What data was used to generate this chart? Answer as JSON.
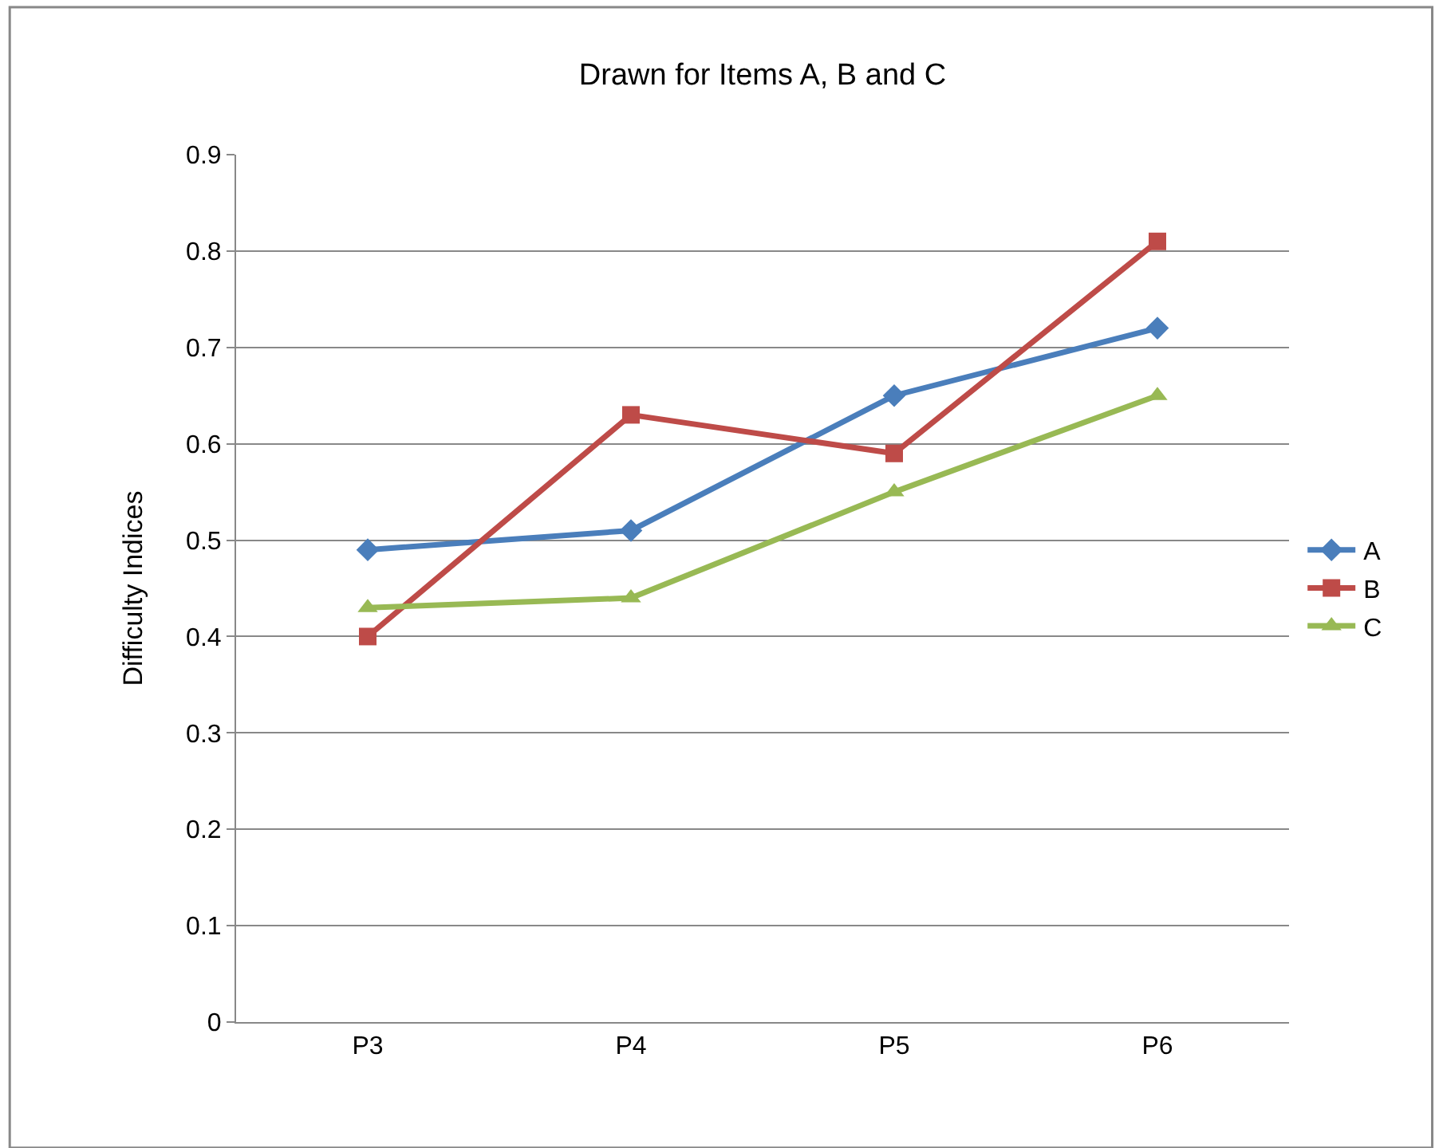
{
  "chart_data": {
    "type": "line",
    "title": "Drawn for Items A, B and C",
    "ylabel": "Difficulty Indices",
    "categories": [
      "P3",
      "P4",
      "P5",
      "P6"
    ],
    "series": [
      {
        "name": "A",
        "color": "#4a7ebb",
        "marker": "diamond",
        "values": [
          0.49,
          0.51,
          0.65,
          0.72
        ]
      },
      {
        "name": "B",
        "color": "#be4b48",
        "marker": "square",
        "values": [
          0.4,
          0.63,
          0.59,
          0.81
        ]
      },
      {
        "name": "C",
        "color": "#98b954",
        "marker": "triangle",
        "values": [
          0.43,
          0.44,
          0.55,
          0.65
        ]
      }
    ],
    "ylim": [
      0,
      0.9
    ],
    "yticks": [
      0,
      0.1,
      0.2,
      0.3,
      0.4,
      0.5,
      0.6,
      0.7,
      0.8,
      0.9
    ],
    "grid": "y",
    "legend": "right",
    "line_style": "solid"
  }
}
